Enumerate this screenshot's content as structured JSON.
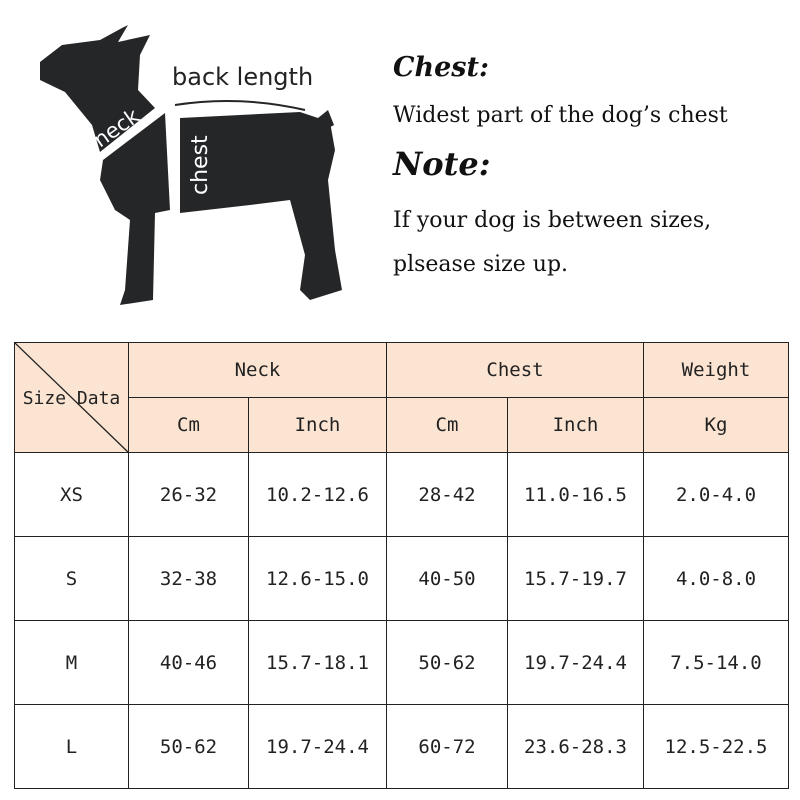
{
  "diagram": {
    "labels": {
      "back_length": "back length",
      "neck": "neck",
      "chest": "chest"
    },
    "silhouette_color": "#252628"
  },
  "info": {
    "chest_title": "Chest:",
    "chest_desc": "Widest part of the dog’s chest",
    "note_title": "Note:",
    "note_line1": "If your dog is between sizes,",
    "note_line2": "plsease size up."
  },
  "table": {
    "corner": "Size Data",
    "groups": [
      "Neck",
      "Chest",
      "Weight"
    ],
    "units": [
      "Cm",
      "Inch",
      "Cm",
      "Inch",
      "Kg"
    ],
    "header_color": "#fce4d2",
    "rows": [
      [
        "XS",
        "26-32",
        "10.2-12.6",
        "28-42",
        "11.0-16.5",
        "2.0-4.0"
      ],
      [
        "S",
        "32-38",
        "12.6-15.0",
        "40-50",
        "15.7-19.7",
        "4.0-8.0"
      ],
      [
        "M",
        "40-46",
        "15.7-18.1",
        "50-62",
        "19.7-24.4",
        "7.5-14.0"
      ],
      [
        "L",
        "50-62",
        "19.7-24.4",
        "60-72",
        "23.6-28.3",
        "12.5-22.5"
      ]
    ]
  }
}
